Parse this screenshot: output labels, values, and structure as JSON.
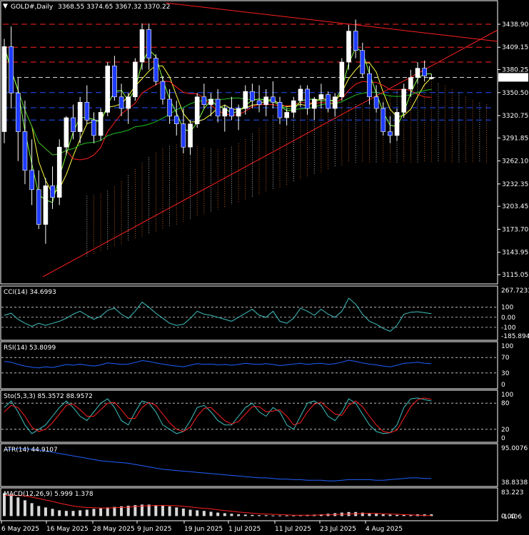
{
  "header": {
    "symbol": "GOLD#,Daily",
    "ohlc": "3368.55 3374.65 3367.32 3370.22"
  },
  "colors": {
    "background": "#000000",
    "bull_candle": "#ffffff",
    "bear_candle": "#1f3cff",
    "ma_red": "#ff2020",
    "ma_yellow": "#ffff40",
    "ma_green": "#20c020",
    "ma_lime": "#80ff40",
    "trendline": "#ff2020",
    "kumo_orange": "#e07020",
    "kumo_white": "#d8d8d8",
    "support_blue": "#2050ff",
    "cci": "#40c0c0",
    "rsi": "#2060ff",
    "stoch_main": "#40c0c0",
    "stoch_signal": "#ff2020",
    "atr": "#2060ff",
    "macd_hist": "#d8d8d8",
    "macd_signal": "#ff2020"
  },
  "chart_data": [
    {
      "type": "candlestick",
      "title": "GOLD#,Daily",
      "ylim": [
        3115.05,
        3438.9
      ],
      "yticks": [
        "3438.90",
        "3409.15",
        "3380.25",
        "3350.50",
        "3320.75",
        "3291.85",
        "3262.10",
        "3232.35",
        "3203.45",
        "3173.70",
        "3143.95",
        "3115.05"
      ],
      "last_price": "3370.22",
      "horizontal_levels": {
        "red_dashed": [
          3438.9,
          3409.2,
          3390.0
        ],
        "white_dashed": [
          3370.2
        ],
        "blue_dashed": [
          3350.5,
          3331.0,
          3315.0
        ]
      },
      "candles": [
        {
          "o": 3300,
          "h": 3420,
          "l": 3285,
          "c": 3410
        },
        {
          "o": 3410,
          "h": 3436,
          "l": 3330,
          "c": 3350
        },
        {
          "o": 3350,
          "h": 3370,
          "l": 3262,
          "c": 3300
        },
        {
          "o": 3300,
          "h": 3340,
          "l": 3232,
          "c": 3250
        },
        {
          "o": 3250,
          "h": 3290,
          "l": 3205,
          "c": 3225
        },
        {
          "o": 3225,
          "h": 3250,
          "l": 3174,
          "c": 3180
        },
        {
          "o": 3180,
          "h": 3240,
          "l": 3155,
          "c": 3230
        },
        {
          "o": 3230,
          "h": 3255,
          "l": 3200,
          "c": 3215
        },
        {
          "o": 3215,
          "h": 3290,
          "l": 3205,
          "c": 3280
        },
        {
          "o": 3280,
          "h": 3320,
          "l": 3270,
          "c": 3318
        },
        {
          "o": 3318,
          "h": 3335,
          "l": 3290,
          "c": 3300
        },
        {
          "o": 3300,
          "h": 3345,
          "l": 3285,
          "c": 3338
        },
        {
          "o": 3338,
          "h": 3360,
          "l": 3310,
          "c": 3315
        },
        {
          "o": 3315,
          "h": 3325,
          "l": 3285,
          "c": 3295
        },
        {
          "o": 3295,
          "h": 3330,
          "l": 3288,
          "c": 3325
        },
        {
          "o": 3325,
          "h": 3390,
          "l": 3320,
          "c": 3385
        },
        {
          "o": 3385,
          "h": 3398,
          "l": 3340,
          "c": 3345
        },
        {
          "o": 3345,
          "h": 3362,
          "l": 3320,
          "c": 3330
        },
        {
          "o": 3330,
          "h": 3350,
          "l": 3310,
          "c": 3345
        },
        {
          "o": 3345,
          "h": 3395,
          "l": 3340,
          "c": 3390
        },
        {
          "o": 3390,
          "h": 3440,
          "l": 3380,
          "c": 3432
        },
        {
          "o": 3432,
          "h": 3440,
          "l": 3380,
          "c": 3395
        },
        {
          "o": 3395,
          "h": 3400,
          "l": 3360,
          "c": 3365
        },
        {
          "o": 3365,
          "h": 3372,
          "l": 3335,
          "c": 3342
        },
        {
          "o": 3342,
          "h": 3355,
          "l": 3310,
          "c": 3320
        },
        {
          "o": 3320,
          "h": 3340,
          "l": 3295,
          "c": 3310
        },
        {
          "o": 3310,
          "h": 3330,
          "l": 3272,
          "c": 3280
        },
        {
          "o": 3280,
          "h": 3315,
          "l": 3270,
          "c": 3310
        },
        {
          "o": 3310,
          "h": 3350,
          "l": 3305,
          "c": 3345
        },
        {
          "o": 3345,
          "h": 3362,
          "l": 3330,
          "c": 3335
        },
        {
          "o": 3335,
          "h": 3350,
          "l": 3320,
          "c": 3342
        },
        {
          "o": 3342,
          "h": 3355,
          "l": 3312,
          "c": 3320
        },
        {
          "o": 3320,
          "h": 3335,
          "l": 3300,
          "c": 3330
        },
        {
          "o": 3330,
          "h": 3345,
          "l": 3315,
          "c": 3320
        },
        {
          "o": 3320,
          "h": 3335,
          "l": 3302,
          "c": 3330
        },
        {
          "o": 3330,
          "h": 3360,
          "l": 3322,
          "c": 3352
        },
        {
          "o": 3352,
          "h": 3362,
          "l": 3330,
          "c": 3340
        },
        {
          "o": 3340,
          "h": 3360,
          "l": 3325,
          "c": 3335
        },
        {
          "o": 3335,
          "h": 3355,
          "l": 3320,
          "c": 3345
        },
        {
          "o": 3345,
          "h": 3365,
          "l": 3330,
          "c": 3338
        },
        {
          "o": 3338,
          "h": 3345,
          "l": 3310,
          "c": 3318
        },
        {
          "o": 3318,
          "h": 3330,
          "l": 3308,
          "c": 3325
        },
        {
          "o": 3325,
          "h": 3345,
          "l": 3318,
          "c": 3340
        },
        {
          "o": 3340,
          "h": 3360,
          "l": 3332,
          "c": 3355
        },
        {
          "o": 3355,
          "h": 3360,
          "l": 3322,
          "c": 3330
        },
        {
          "o": 3330,
          "h": 3345,
          "l": 3315,
          "c": 3342
        },
        {
          "o": 3342,
          "h": 3362,
          "l": 3330,
          "c": 3348
        },
        {
          "o": 3348,
          "h": 3352,
          "l": 3325,
          "c": 3330
        },
        {
          "o": 3330,
          "h": 3350,
          "l": 3320,
          "c": 3345
        },
        {
          "o": 3345,
          "h": 3395,
          "l": 3340,
          "c": 3390
        },
        {
          "o": 3390,
          "h": 3438,
          "l": 3380,
          "c": 3430
        },
        {
          "o": 3430,
          "h": 3445,
          "l": 3395,
          "c": 3405
        },
        {
          "o": 3405,
          "h": 3415,
          "l": 3370,
          "c": 3375
        },
        {
          "o": 3375,
          "h": 3385,
          "l": 3335,
          "c": 3345
        },
        {
          "o": 3345,
          "h": 3360,
          "l": 3325,
          "c": 3330
        },
        {
          "o": 3330,
          "h": 3338,
          "l": 3295,
          "c": 3300
        },
        {
          "o": 3300,
          "h": 3320,
          "l": 3285,
          "c": 3295
        },
        {
          "o": 3295,
          "h": 3330,
          "l": 3288,
          "c": 3325
        },
        {
          "o": 3325,
          "h": 3362,
          "l": 3318,
          "c": 3355
        },
        {
          "o": 3355,
          "h": 3380,
          "l": 3345,
          "c": 3370
        },
        {
          "o": 3370,
          "h": 3390,
          "l": 3362,
          "c": 3382
        },
        {
          "o": 3382,
          "h": 3392,
          "l": 3365,
          "c": 3372
        },
        {
          "o": 3368.55,
          "h": 3374.65,
          "l": 3367.32,
          "c": 3370.22
        }
      ],
      "xticks": [
        "6 May 2025",
        "16 May 2025",
        "28 May 2025",
        "9 Jun 2025",
        "19 Jun 2025",
        "1 Jul 2025",
        "11 Jul 2025",
        "23 Jul 2025",
        "4 Aug 2025"
      ]
    },
    {
      "type": "line",
      "title": "CCI(14) 34.6993",
      "yticks": [
        "267.7233",
        "100",
        "0.00",
        "-100",
        "-185.8945"
      ],
      "ylim": [
        -185.8945,
        267.7233
      ],
      "series": [
        {
          "values": [
            20,
            40,
            -20,
            -60,
            -90,
            -60,
            -80,
            -60,
            -40,
            -10,
            30,
            60,
            20,
            -20,
            10,
            70,
            90,
            30,
            -10,
            60,
            150,
            100,
            40,
            -10,
            -60,
            -80,
            -70,
            -10,
            60,
            30,
            20,
            0,
            -20,
            -40,
            0,
            40,
            80,
            20,
            0,
            60,
            -40,
            -60,
            -10,
            90,
            60,
            20,
            80,
            30,
            0,
            60,
            190,
            130,
            30,
            -40,
            -70,
            -110,
            -140,
            -80,
            30,
            50,
            55,
            45,
            35
          ]
        }
      ]
    },
    {
      "type": "line",
      "title": "RSI(14) 53.8099",
      "yticks": [
        "100",
        "70",
        "30",
        "0"
      ],
      "ylim": [
        0,
        100
      ],
      "series": [
        {
          "values": [
            60,
            58,
            52,
            48,
            45,
            43,
            46,
            44,
            48,
            52,
            50,
            53,
            50,
            48,
            51,
            56,
            54,
            52,
            53,
            57,
            62,
            60,
            56,
            53,
            50,
            48,
            46,
            50,
            54,
            52,
            53,
            51,
            52,
            50,
            52,
            55,
            53,
            52,
            54,
            52,
            49,
            51,
            53,
            55,
            52,
            54,
            55,
            52,
            54,
            58,
            63,
            60,
            56,
            53,
            51,
            48,
            46,
            50,
            55,
            56,
            58,
            55,
            54
          ]
        }
      ]
    },
    {
      "type": "line",
      "title": "Sto(5,3,3) 85.3572 88.9572",
      "yticks": [
        "100",
        "80",
        "20",
        "0"
      ],
      "ylim": [
        0,
        100
      ],
      "series": [
        {
          "name": "main",
          "values": [
            70,
            85,
            60,
            30,
            10,
            20,
            30,
            50,
            70,
            85,
            70,
            50,
            40,
            60,
            80,
            90,
            70,
            40,
            30,
            60,
            85,
            80,
            60,
            30,
            20,
            10,
            15,
            40,
            70,
            75,
            60,
            40,
            30,
            30,
            50,
            70,
            80,
            60,
            50,
            70,
            60,
            30,
            20,
            50,
            80,
            85,
            75,
            50,
            40,
            60,
            90,
            80,
            55,
            30,
            15,
            10,
            12,
            30,
            70,
            90,
            92,
            88,
            85
          ]
        },
        {
          "name": "signal",
          "values": [
            60,
            75,
            70,
            50,
            25,
            15,
            20,
            35,
            55,
            75,
            78,
            65,
            50,
            50,
            65,
            80,
            82,
            65,
            45,
            45,
            70,
            82,
            75,
            55,
            35,
            20,
            15,
            25,
            50,
            68,
            70,
            55,
            40,
            32,
            38,
            55,
            72,
            72,
            60,
            62,
            65,
            50,
            30,
            35,
            60,
            78,
            82,
            68,
            55,
            52,
            75,
            85,
            72,
            50,
            30,
            15,
            12,
            18,
            45,
            72,
            88,
            92,
            89
          ]
        }
      ]
    },
    {
      "type": "line",
      "title": "ATR(14) 44.9107",
      "yticks": [
        "95.0076",
        "38.8338"
      ],
      "ylim": [
        38.8338,
        95.0076
      ],
      "series": [
        {
          "values": [
            92,
            93,
            94,
            94,
            93,
            92,
            90,
            88,
            86,
            84,
            82,
            80,
            78,
            76,
            74,
            73,
            72,
            71,
            70,
            68,
            66,
            64,
            62,
            60,
            59,
            58,
            57,
            56,
            55,
            54,
            53,
            52,
            51,
            50,
            49,
            48,
            47,
            46,
            46,
            45,
            44,
            44,
            43,
            43,
            42,
            42,
            42,
            41,
            41,
            42,
            43,
            43,
            43,
            43,
            42,
            42,
            43,
            44,
            45,
            46,
            46,
            45,
            44.91
          ]
        }
      ]
    },
    {
      "type": "bar",
      "title": "MACD(12,26,9) 5.999 1.378",
      "yticks": [
        "83.223",
        "0.00",
        "-1.406"
      ],
      "ylim": [
        -1.406,
        83.223
      ],
      "series": [
        {
          "name": "macd",
          "values": [
            80,
            75,
            65,
            55,
            45,
            35,
            30,
            25,
            20,
            18,
            18,
            20,
            22,
            25,
            28,
            30,
            32,
            34,
            36,
            38,
            40,
            40,
            38,
            36,
            34,
            30,
            26,
            22,
            20,
            18,
            15,
            12,
            10,
            8,
            6,
            5,
            4,
            3,
            3,
            2,
            2,
            2,
            2,
            3,
            4,
            5,
            6,
            8,
            10,
            12,
            14,
            14,
            12,
            10,
            8,
            6,
            5,
            4,
            4,
            5,
            6,
            6,
            6
          ]
        },
        {
          "name": "signal",
          "values": [
            72,
            73,
            72,
            70,
            66,
            61,
            56,
            51,
            45,
            40,
            35,
            32,
            30,
            29,
            28,
            28,
            29,
            30,
            31,
            33,
            35,
            36,
            37,
            37,
            37,
            36,
            34,
            32,
            29,
            27,
            25,
            22,
            19,
            17,
            14,
            12,
            10,
            8,
            7,
            6,
            5,
            4,
            3,
            3,
            3,
            3,
            4,
            4,
            5,
            6,
            7,
            8,
            9,
            9,
            9,
            8,
            7,
            6,
            5,
            4,
            3,
            2,
            1.4
          ]
        }
      ]
    }
  ]
}
